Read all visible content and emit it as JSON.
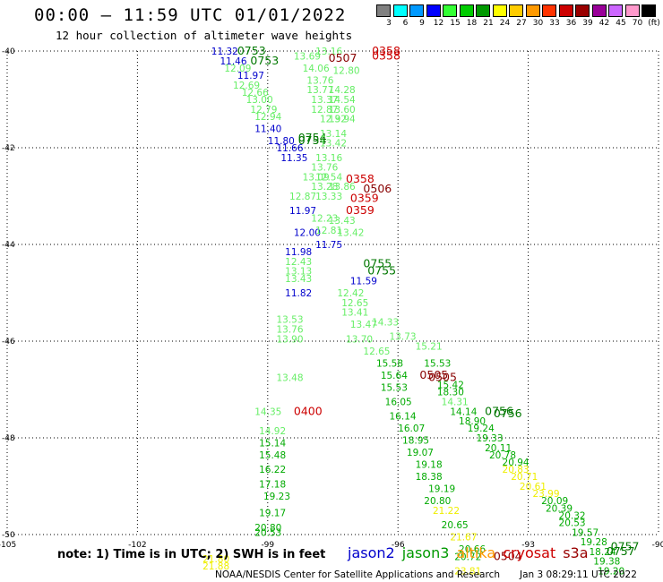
{
  "header": {
    "title": "00:00 — 11:59 UTC 01/01/2022",
    "subtitle": "12 hour collection of altimeter wave heights"
  },
  "colorbar": {
    "labels": [
      "3",
      "6",
      "9",
      "12",
      "15",
      "18",
      "21",
      "24",
      "27",
      "30",
      "33",
      "36",
      "39",
      "42",
      "45",
      "70",
      "(ft)"
    ],
    "colors": [
      "#808080",
      "#00ffff",
      "#0099ff",
      "#0000ff",
      "#33ff33",
      "#00cc00",
      "#009900",
      "#ffff00",
      "#ffcc00",
      "#ff9900",
      "#ff3300",
      "#cc0000",
      "#990000",
      "#990099",
      "#cc66ff",
      "#ff99cc",
      "#000000"
    ]
  },
  "footer": {
    "note": "note: 1) Time is in UTC; 2) SWH is in feet",
    "credit": "NOAA/NESDIS Center for Satellite Applications and Research",
    "timestamp": "Jan  3 08:29:11 UTC 2022"
  },
  "legend": [
    {
      "name": "jason2",
      "color": "#0000cc"
    },
    {
      "name": "jason3",
      "color": "#009900"
    },
    {
      "name": "altika",
      "color": "#ff9900"
    },
    {
      "name": "cryosat",
      "color": "#cc0000"
    },
    {
      "name": "s3a",
      "color": "#990000"
    }
  ],
  "chart_data": {
    "type": "scatter",
    "xlim": [
      -105,
      -90
    ],
    "ylim": [
      -50,
      -40
    ],
    "x_ticks": [
      "-105",
      "-102",
      "-99",
      "-96",
      "-93",
      "-90"
    ],
    "y_ticks": [
      "-40",
      "-42",
      "-44",
      "-46",
      "-48",
      "-50"
    ],
    "grid": true,
    "colors": {
      "blue": "#0000cc",
      "lgreen": "#66ee66",
      "green": "#00aa00",
      "dgreen": "#007700",
      "yellow": "#eeee00",
      "red": "#cc0000",
      "dred": "#880000"
    },
    "labels": [
      {
        "t": "11.32",
        "x": -100.3,
        "y": -40.0,
        "c": "blue"
      },
      {
        "t": "0753",
        "x": -99.7,
        "y": -40.0,
        "c": "dgreen"
      },
      {
        "t": "11.46",
        "x": -100.1,
        "y": -40.2,
        "c": "blue"
      },
      {
        "t": "0753",
        "x": -99.4,
        "y": -40.2,
        "c": "dgreen"
      },
      {
        "t": "12.09",
        "x": -100.0,
        "y": -40.35,
        "c": "lgreen"
      },
      {
        "t": "11.97",
        "x": -99.7,
        "y": -40.5,
        "c": "blue"
      },
      {
        "t": "12.69",
        "x": -99.8,
        "y": -40.7,
        "c": "lgreen"
      },
      {
        "t": "12.66",
        "x": -99.6,
        "y": -40.85,
        "c": "lgreen"
      },
      {
        "t": "13.00",
        "x": -99.5,
        "y": -41.0,
        "c": "lgreen"
      },
      {
        "t": "12.79",
        "x": -99.4,
        "y": -41.2,
        "c": "lgreen"
      },
      {
        "t": "12.94",
        "x": -99.3,
        "y": -41.35,
        "c": "lgreen"
      },
      {
        "t": "11.40",
        "x": -99.3,
        "y": -41.6,
        "c": "blue"
      },
      {
        "t": "11.80",
        "x": -99.0,
        "y": -41.85,
        "c": "blue"
      },
      {
        "t": "11.66",
        "x": -98.8,
        "y": -42.0,
        "c": "blue"
      },
      {
        "t": "11.35",
        "x": -98.7,
        "y": -42.2,
        "c": "blue"
      },
      {
        "t": "0754",
        "x": -98.3,
        "y": -41.8,
        "c": "dgreen"
      },
      {
        "t": "0754",
        "x": -98.3,
        "y": -41.85,
        "c": "dgreen"
      },
      {
        "t": "13.16",
        "x": -97.9,
        "y": -40.0,
        "c": "lgreen"
      },
      {
        "t": "13.69",
        "x": -98.4,
        "y": -40.1,
        "c": "lgreen"
      },
      {
        "t": "14.06",
        "x": -98.2,
        "y": -40.35,
        "c": "lgreen"
      },
      {
        "t": "12.80",
        "x": -97.5,
        "y": -40.4,
        "c": "lgreen"
      },
      {
        "t": "13.76",
        "x": -98.1,
        "y": -40.6,
        "c": "lgreen"
      },
      {
        "t": "13.77",
        "x": -98.1,
        "y": -40.8,
        "c": "lgreen"
      },
      {
        "t": "14.28",
        "x": -97.6,
        "y": -40.8,
        "c": "lgreen"
      },
      {
        "t": "13.37",
        "x": -98.0,
        "y": -41.0,
        "c": "lgreen"
      },
      {
        "t": "14.54",
        "x": -97.6,
        "y": -41.0,
        "c": "lgreen"
      },
      {
        "t": "12.87",
        "x": -98.0,
        "y": -41.2,
        "c": "lgreen"
      },
      {
        "t": "13.60",
        "x": -97.6,
        "y": -41.2,
        "c": "lgreen"
      },
      {
        "t": "12.92",
        "x": -97.8,
        "y": -41.4,
        "c": "lgreen"
      },
      {
        "t": "13.94",
        "x": -97.6,
        "y": -41.4,
        "c": "lgreen"
      },
      {
        "t": "13.14",
        "x": -97.8,
        "y": -41.7,
        "c": "lgreen"
      },
      {
        "t": "13.42",
        "x": -97.8,
        "y": -41.9,
        "c": "lgreen"
      },
      {
        "t": "13.16",
        "x": -97.9,
        "y": -42.2,
        "c": "lgreen"
      },
      {
        "t": "13.76",
        "x": -98.0,
        "y": -42.4,
        "c": "lgreen"
      },
      {
        "t": "13.09",
        "x": -98.2,
        "y": -42.6,
        "c": "lgreen"
      },
      {
        "t": "12.54",
        "x": -97.9,
        "y": -42.6,
        "c": "lgreen"
      },
      {
        "t": "13.28",
        "x": -98.0,
        "y": -42.8,
        "c": "lgreen"
      },
      {
        "t": "13.86",
        "x": -97.6,
        "y": -42.8,
        "c": "lgreen"
      },
      {
        "t": "12.87",
        "x": -98.5,
        "y": -43.0,
        "c": "lgreen"
      },
      {
        "t": "13.33",
        "x": -97.9,
        "y": -43.0,
        "c": "lgreen"
      },
      {
        "t": "0358",
        "x": -96.6,
        "y": -40.0,
        "c": "red"
      },
      {
        "t": "0358",
        "x": -96.6,
        "y": -40.1,
        "c": "red"
      },
      {
        "t": "0507",
        "x": -97.6,
        "y": -40.15,
        "c": "dred"
      },
      {
        "t": "0358",
        "x": -97.2,
        "y": -42.65,
        "c": "red"
      },
      {
        "t": "0506",
        "x": -96.8,
        "y": -42.85,
        "c": "dred"
      },
      {
        "t": "0359",
        "x": -97.1,
        "y": -43.05,
        "c": "red"
      },
      {
        "t": "0359",
        "x": -97.2,
        "y": -43.3,
        "c": "red"
      },
      {
        "t": "11.97",
        "x": -98.5,
        "y": -43.3,
        "c": "blue"
      },
      {
        "t": "12.23",
        "x": -98.0,
        "y": -43.45,
        "c": "lgreen"
      },
      {
        "t": "13.43",
        "x": -97.6,
        "y": -43.5,
        "c": "lgreen"
      },
      {
        "t": "12.00",
        "x": -98.4,
        "y": -43.75,
        "c": "blue"
      },
      {
        "t": "12.81",
        "x": -97.9,
        "y": -43.7,
        "c": "lgreen"
      },
      {
        "t": "13.42",
        "x": -97.4,
        "y": -43.75,
        "c": "lgreen"
      },
      {
        "t": "11.75",
        "x": -97.9,
        "y": -44.0,
        "c": "blue"
      },
      {
        "t": "11.98",
        "x": -98.6,
        "y": -44.15,
        "c": "blue"
      },
      {
        "t": "12.43",
        "x": -98.6,
        "y": -44.35,
        "c": "lgreen"
      },
      {
        "t": "13.13",
        "x": -98.6,
        "y": -44.55,
        "c": "lgreen"
      },
      {
        "t": "13.43",
        "x": -98.6,
        "y": -44.7,
        "c": "lgreen"
      },
      {
        "t": "0755",
        "x": -96.8,
        "y": -44.4,
        "c": "dgreen"
      },
      {
        "t": "0755",
        "x": -96.7,
        "y": -44.55,
        "c": "dgreen"
      },
      {
        "t": "11.59",
        "x": -97.1,
        "y": -44.75,
        "c": "blue"
      },
      {
        "t": "11.82",
        "x": -98.6,
        "y": -45.0,
        "c": "blue"
      },
      {
        "t": "12.42",
        "x": -97.4,
        "y": -45.0,
        "c": "lgreen"
      },
      {
        "t": "12.65",
        "x": -97.3,
        "y": -45.2,
        "c": "lgreen"
      },
      {
        "t": "13.41",
        "x": -97.3,
        "y": -45.4,
        "c": "lgreen"
      },
      {
        "t": "13.47",
        "x": -97.1,
        "y": -45.65,
        "c": "lgreen"
      },
      {
        "t": "13.70",
        "x": -97.2,
        "y": -45.95,
        "c": "lgreen"
      },
      {
        "t": "14.33",
        "x": -96.6,
        "y": -45.6,
        "c": "lgreen"
      },
      {
        "t": "13.73",
        "x": -96.2,
        "y": -45.9,
        "c": "lgreen"
      },
      {
        "t": "13.53",
        "x": -98.8,
        "y": -45.55,
        "c": "lgreen"
      },
      {
        "t": "13.76",
        "x": -98.8,
        "y": -45.75,
        "c": "lgreen"
      },
      {
        "t": "13.90",
        "x": -98.8,
        "y": -45.95,
        "c": "lgreen"
      },
      {
        "t": "12.65",
        "x": -96.8,
        "y": -46.2,
        "c": "lgreen"
      },
      {
        "t": "15.21",
        "x": -95.6,
        "y": -46.1,
        "c": "lgreen"
      },
      {
        "t": "15.58",
        "x": -96.5,
        "y": -46.45,
        "c": "green"
      },
      {
        "t": "15.53",
        "x": -95.4,
        "y": -46.45,
        "c": "green"
      },
      {
        "t": "15.64",
        "x": -96.4,
        "y": -46.7,
        "c": "green"
      },
      {
        "t": "0505",
        "x": -95.5,
        "y": -46.7,
        "c": "dred"
      },
      {
        "t": "0505",
        "x": -95.3,
        "y": -46.75,
        "c": "dred"
      },
      {
        "t": "15.42",
        "x": -95.1,
        "y": -46.9,
        "c": "green"
      },
      {
        "t": "13.48",
        "x": -98.8,
        "y": -46.75,
        "c": "lgreen"
      },
      {
        "t": "15.53",
        "x": -96.4,
        "y": -46.95,
        "c": "green"
      },
      {
        "t": "18.30",
        "x": -95.1,
        "y": -47.05,
        "c": "green"
      },
      {
        "t": "16.05",
        "x": -96.3,
        "y": -47.25,
        "c": "green"
      },
      {
        "t": "14.31",
        "x": -95.0,
        "y": -47.25,
        "c": "lgreen"
      },
      {
        "t": "14.14",
        "x": -94.8,
        "y": -47.45,
        "c": "green"
      },
      {
        "t": "0756",
        "x": -94.0,
        "y": -47.45,
        "c": "dgreen"
      },
      {
        "t": "0756",
        "x": -93.8,
        "y": -47.5,
        "c": "dgreen"
      },
      {
        "t": "14.35",
        "x": -99.3,
        "y": -47.45,
        "c": "lgreen"
      },
      {
        "t": "0400",
        "x": -98.4,
        "y": -47.45,
        "c": "red"
      },
      {
        "t": "16.14",
        "x": -96.2,
        "y": -47.55,
        "c": "green"
      },
      {
        "t": "18.90",
        "x": -94.6,
        "y": -47.65,
        "c": "green"
      },
      {
        "t": "16.07",
        "x": -96.0,
        "y": -47.8,
        "c": "green"
      },
      {
        "t": "19.24",
        "x": -94.4,
        "y": -47.8,
        "c": "green"
      },
      {
        "t": "14.92",
        "x": -99.2,
        "y": -47.85,
        "c": "lgreen"
      },
      {
        "t": "18.95",
        "x": -95.9,
        "y": -48.05,
        "c": "green"
      },
      {
        "t": "19.33",
        "x": -94.2,
        "y": -48.0,
        "c": "green"
      },
      {
        "t": "15.14",
        "x": -99.2,
        "y": -48.1,
        "c": "green"
      },
      {
        "t": "20.11",
        "x": -94.0,
        "y": -48.2,
        "c": "green"
      },
      {
        "t": "19.07",
        "x": -95.8,
        "y": -48.3,
        "c": "green"
      },
      {
        "t": "20.78",
        "x": -93.9,
        "y": -48.35,
        "c": "green"
      },
      {
        "t": "15.48",
        "x": -99.2,
        "y": -48.35,
        "c": "green"
      },
      {
        "t": "20.94",
        "x": -93.6,
        "y": -48.5,
        "c": "green"
      },
      {
        "t": "19.18",
        "x": -95.6,
        "y": -48.55,
        "c": "green"
      },
      {
        "t": "20.83",
        "x": -93.6,
        "y": -48.65,
        "c": "yellow"
      },
      {
        "t": "16.22",
        "x": -99.2,
        "y": -48.65,
        "c": "green"
      },
      {
        "t": "18.38",
        "x": -95.6,
        "y": -48.8,
        "c": "green"
      },
      {
        "t": "20.71",
        "x": -93.4,
        "y": -48.8,
        "c": "yellow"
      },
      {
        "t": "17.18",
        "x": -99.2,
        "y": -48.95,
        "c": "green"
      },
      {
        "t": "20.61",
        "x": -93.2,
        "y": -49.0,
        "c": "yellow"
      },
      {
        "t": "19.19",
        "x": -95.3,
        "y": -49.05,
        "c": "green"
      },
      {
        "t": "19.23",
        "x": -99.1,
        "y": -49.2,
        "c": "green"
      },
      {
        "t": "23.99",
        "x": -92.9,
        "y": -49.15,
        "c": "yellow"
      },
      {
        "t": "20.80",
        "x": -95.4,
        "y": -49.3,
        "c": "green"
      },
      {
        "t": "20.09",
        "x": -92.7,
        "y": -49.3,
        "c": "green"
      },
      {
        "t": "20.39",
        "x": -92.6,
        "y": -49.45,
        "c": "green"
      },
      {
        "t": "21.22",
        "x": -95.2,
        "y": -49.5,
        "c": "yellow"
      },
      {
        "t": "19.17",
        "x": -99.2,
        "y": -49.55,
        "c": "green"
      },
      {
        "t": "20.32",
        "x": -92.3,
        "y": -49.6,
        "c": "green"
      },
      {
        "t": "20.65",
        "x": -95.0,
        "y": -49.8,
        "c": "green"
      },
      {
        "t": "20.53",
        "x": -92.3,
        "y": -49.75,
        "c": "green"
      },
      {
        "t": "20.80",
        "x": -99.3,
        "y": -49.85,
        "c": "green"
      },
      {
        "t": "20.53",
        "x": -99.3,
        "y": -49.95,
        "c": "green"
      },
      {
        "t": "19.57",
        "x": -92.0,
        "y": -49.95,
        "c": "green"
      },
      {
        "t": "21.67",
        "x": -94.8,
        "y": -50.05,
        "c": "yellow"
      },
      {
        "t": "19.28",
        "x": -91.8,
        "y": -50.15,
        "c": "green"
      },
      {
        "t": "20.66",
        "x": -94.6,
        "y": -50.3,
        "c": "green"
      },
      {
        "t": "0757",
        "x": -91.1,
        "y": -50.25,
        "c": "dgreen"
      },
      {
        "t": "18.24",
        "x": -91.6,
        "y": -50.35,
        "c": "green"
      },
      {
        "t": "0757",
        "x": -91.2,
        "y": -50.35,
        "c": "dgreen"
      },
      {
        "t": "20.72",
        "x": -94.7,
        "y": -50.45,
        "c": "green"
      },
      {
        "t": "0504",
        "x": -93.8,
        "y": -50.45,
        "c": "dred"
      },
      {
        "t": "19.38",
        "x": -91.5,
        "y": -50.55,
        "c": "green"
      },
      {
        "t": "21.80",
        "x": -100.5,
        "y": -50.5,
        "c": "yellow"
      },
      {
        "t": "21.88",
        "x": -100.5,
        "y": -50.65,
        "c": "yellow"
      },
      {
        "t": "23.81",
        "x": -94.7,
        "y": -50.75,
        "c": "yellow"
      },
      {
        "t": "19.20",
        "x": -91.4,
        "y": -50.75,
        "c": "green"
      }
    ]
  }
}
